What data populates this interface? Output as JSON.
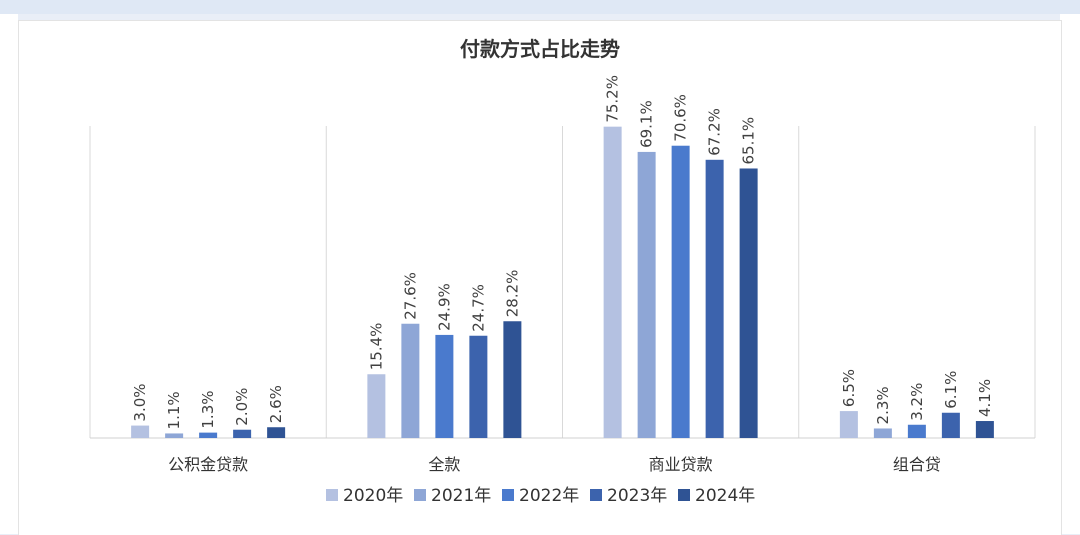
{
  "chart_data": {
    "type": "bar",
    "title": "付款方式占比走势",
    "categories": [
      "公积金贷款",
      "全款",
      "商业贷款",
      "组合贷"
    ],
    "series": [
      {
        "name": "2020年",
        "color": "#b4c1e1",
        "values": [
          3.0,
          15.4,
          75.2,
          6.5
        ],
        "labels": [
          "3.0%",
          "15.4%",
          "75.2%",
          "6.5%"
        ]
      },
      {
        "name": "2021年",
        "color": "#8ea6d6",
        "values": [
          1.1,
          27.6,
          69.1,
          2.3
        ],
        "labels": [
          "1.1%",
          "27.6%",
          "69.1%",
          "2.3%"
        ]
      },
      {
        "name": "2022年",
        "color": "#4a7acd",
        "values": [
          1.3,
          24.9,
          70.6,
          3.2
        ],
        "labels": [
          "1.3%",
          "24.9%",
          "70.6%",
          "3.2%"
        ]
      },
      {
        "name": "2023年",
        "color": "#3c63ad",
        "values": [
          2.0,
          24.7,
          67.2,
          6.1
        ],
        "labels": [
          "2.0%",
          "24.7%",
          "67.2%",
          "6.1%"
        ]
      },
      {
        "name": "2024年",
        "color": "#2f5394",
        "values": [
          2.6,
          28.2,
          65.1,
          4.1
        ],
        "labels": [
          "2.6%",
          "28.2%",
          "65.1%",
          "4.1%"
        ]
      }
    ],
    "ylim": [
      0,
      80
    ],
    "grid": false,
    "legend_position": "bottom"
  }
}
